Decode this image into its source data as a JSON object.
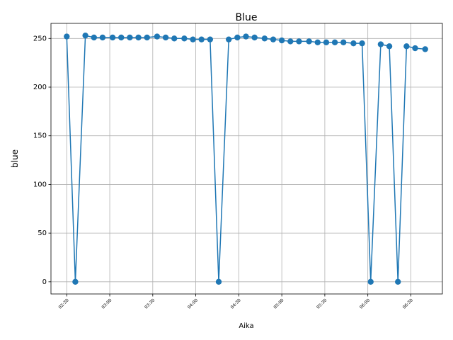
{
  "chart_data": {
    "type": "line",
    "title": "Blue",
    "x_label": "Aika",
    "y_label": "blue",
    "x": [
      "02:30",
      "02:36",
      "02:43",
      "02:49",
      "02:55",
      "03:02",
      "03:08",
      "03:14",
      "03:20",
      "03:26",
      "03:33",
      "03:39",
      "03:45",
      "03:52",
      "03:58",
      "04:04",
      "04:10",
      "04:16",
      "04:23",
      "04:29",
      "04:35",
      "04:41",
      "04:48",
      "04:54",
      "05:00",
      "05:06",
      "05:12",
      "05:19",
      "05:25",
      "05:31",
      "05:37",
      "05:43",
      "05:50",
      "05:56",
      "06:02",
      "06:09",
      "06:15",
      "06:21",
      "06:27",
      "06:33",
      "06:40"
    ],
    "series": [
      {
        "name": "blue",
        "color": "#1f77b4",
        "values": [
          252,
          0,
          253,
          251,
          251,
          251,
          251,
          251,
          251,
          251,
          252,
          251,
          250,
          250,
          249,
          249,
          249,
          0,
          249,
          251,
          252,
          251,
          250,
          249,
          248,
          247,
          247,
          247,
          246,
          246,
          246,
          246,
          245,
          245,
          0,
          244,
          242,
          0,
          242,
          240,
          239
        ]
      }
    ],
    "xlim": [
      "02:19",
      "06:52"
    ],
    "xticks": [
      "02:30",
      "03:00",
      "03:30",
      "04:00",
      "04:30",
      "05:00",
      "05:30",
      "06:00",
      "06:30"
    ],
    "ylim": [
      -12.5,
      265.5
    ],
    "yticks": [
      0,
      50,
      100,
      150,
      200,
      250
    ],
    "grid": true
  }
}
